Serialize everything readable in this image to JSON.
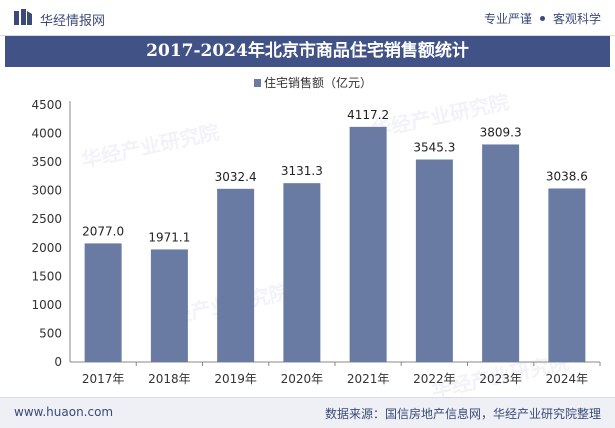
{
  "header": {
    "brand": "华经情报网",
    "slogan_left": "专业严谨",
    "slogan_right": "客观科学"
  },
  "title": "2017-2024年北京市商品住宅销售额统计",
  "footer": {
    "url": "www.huaon.com",
    "source": "数据来源：国信房地产信息网，华经产业研究院整理"
  },
  "watermark": "华经产业研究院",
  "colors": {
    "bar": "#6a7ba3",
    "title_bg": "#415287",
    "text": "#3b4a78"
  },
  "chart_data": {
    "type": "bar",
    "title": "2017-2024年北京市商品住宅销售额统计",
    "categories": [
      "2017年",
      "2018年",
      "2019年",
      "2020年",
      "2021年",
      "2022年",
      "2023年",
      "2024年"
    ],
    "series": [
      {
        "name": "住宅销售额（亿元）",
        "values": [
          2077.0,
          1971.1,
          3032.4,
          3131.3,
          4117.2,
          3545.3,
          3809.3,
          3038.6
        ]
      }
    ],
    "value_labels": [
      "2077.0",
      "1971.1",
      "3032.4",
      "3131.3",
      "4117.2",
      "3545.3",
      "3809.3",
      "3038.6"
    ],
    "ylim": [
      0,
      4500
    ],
    "yticks": [
      0,
      500,
      1000,
      1500,
      2000,
      2500,
      3000,
      3500,
      4000,
      4500
    ],
    "xlabel": "",
    "ylabel": "",
    "legend": "top-center",
    "grid": false
  }
}
